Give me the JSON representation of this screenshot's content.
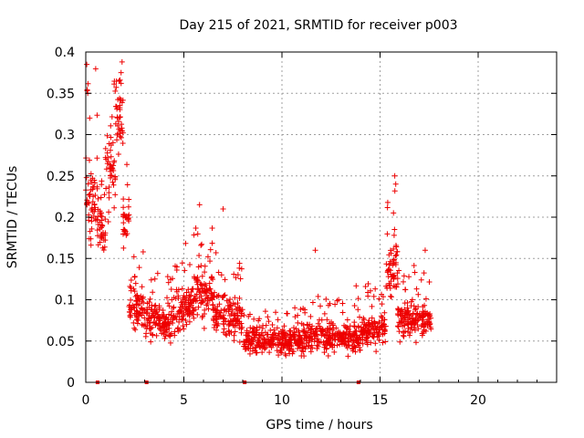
{
  "chart_data": {
    "type": "scatter",
    "title": "Day 215 of 2021, SRMTID for receiver p003",
    "xlabel": "GPS time / hours",
    "ylabel": "SRMTID / TECUs",
    "xlim": [
      0,
      24
    ],
    "ylim": [
      0,
      0.4
    ],
    "xticks": [
      0,
      5,
      10,
      15,
      20
    ],
    "xtick_labels": [
      "0",
      "5",
      "10",
      "15",
      "20"
    ],
    "yticks": [
      0,
      0.05,
      0.1,
      0.15,
      0.2,
      0.25,
      0.3,
      0.35,
      0.4
    ],
    "ytick_labels": [
      "0",
      "0.05",
      "0.1",
      "0.15",
      "0.2",
      "0.25",
      "0.3",
      "0.35",
      "0.4"
    ],
    "grid": true,
    "marker": "+",
    "series": [
      {
        "name": "SRMTID",
        "color": "#ee0000",
        "segments": [
          {
            "x0": 0.0,
            "x1": 0.6,
            "base": 0.22,
            "spread": 0.09
          },
          {
            "x0": 0.6,
            "x1": 1.0,
            "base": 0.19,
            "spread": 0.05
          },
          {
            "x0": 1.0,
            "x1": 1.5,
            "base": 0.26,
            "spread": 0.08
          },
          {
            "x0": 1.5,
            "x1": 1.9,
            "base": 0.32,
            "spread": 0.06
          },
          {
            "x0": 1.9,
            "x1": 2.2,
            "base": 0.2,
            "spread": 0.05
          },
          {
            "x0": 2.2,
            "x1": 3.0,
            "base": 0.09,
            "spread": 0.04
          },
          {
            "x0": 3.0,
            "x1": 4.5,
            "base": 0.075,
            "spread": 0.035
          },
          {
            "x0": 4.5,
            "x1": 5.5,
            "base": 0.09,
            "spread": 0.045
          },
          {
            "x0": 5.5,
            "x1": 6.5,
            "base": 0.11,
            "spread": 0.05
          },
          {
            "x0": 6.5,
            "x1": 8.0,
            "base": 0.08,
            "spread": 0.045
          },
          {
            "x0": 8.0,
            "x1": 11.0,
            "base": 0.05,
            "spread": 0.025
          },
          {
            "x0": 11.0,
            "x1": 14.0,
            "base": 0.055,
            "spread": 0.03
          },
          {
            "x0": 14.0,
            "x1": 15.3,
            "base": 0.065,
            "spread": 0.03
          },
          {
            "x0": 15.3,
            "x1": 15.9,
            "base": 0.14,
            "spread": 0.06
          },
          {
            "x0": 15.9,
            "x1": 17.6,
            "base": 0.075,
            "spread": 0.035
          }
        ],
        "peaks": [
          {
            "x": 0.05,
            "y": 0.385
          },
          {
            "x": 0.1,
            "y": 0.35
          },
          {
            "x": 0.2,
            "y": 0.32
          },
          {
            "x": 1.85,
            "y": 0.388
          },
          {
            "x": 1.8,
            "y": 0.375
          },
          {
            "x": 1.7,
            "y": 0.365
          },
          {
            "x": 5.8,
            "y": 0.215
          },
          {
            "x": 7.0,
            "y": 0.21
          },
          {
            "x": 11.7,
            "y": 0.16
          },
          {
            "x": 15.75,
            "y": 0.25
          },
          {
            "x": 15.8,
            "y": 0.24
          },
          {
            "x": 17.3,
            "y": 0.16
          }
        ],
        "zero_points": [
          0.6,
          3.1,
          8.1,
          13.9
        ]
      }
    ]
  }
}
